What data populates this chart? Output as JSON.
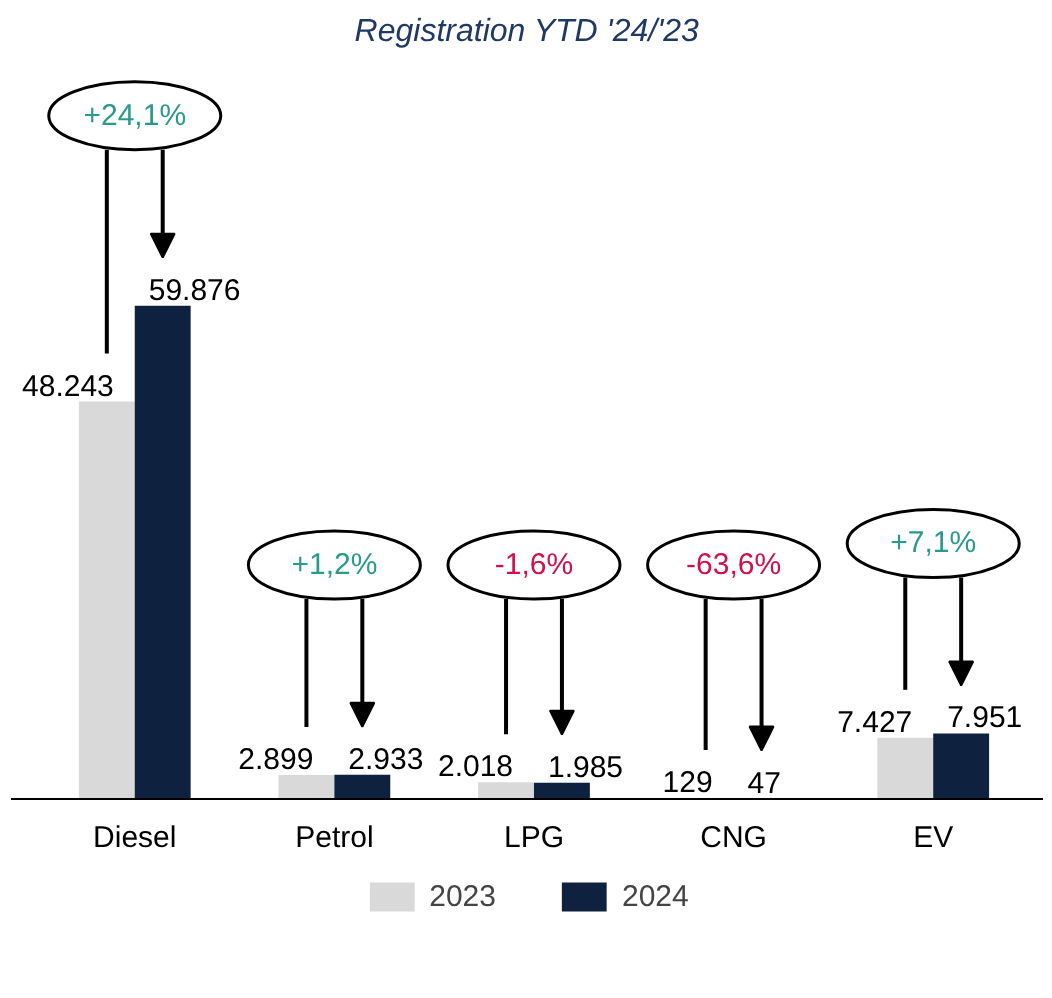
{
  "chart_data": {
    "type": "bar",
    "title": "Registration YTD '24/'23",
    "categories": [
      "Diesel",
      "Petrol",
      "LPG",
      "CNG",
      "EV"
    ],
    "series": [
      {
        "name": "2023",
        "color": "#d9d9d9",
        "values": [
          48243,
          2899,
          2018,
          129,
          7427
        ],
        "value_labels": [
          "48.243",
          "2.899",
          "2.018",
          "129",
          "7.427"
        ]
      },
      {
        "name": "2024",
        "color": "#0e2240",
        "values": [
          59876,
          2933,
          1985,
          47,
          7951
        ],
        "value_labels": [
          "59.876",
          "2.933",
          "1.985",
          "47",
          "7.951"
        ]
      }
    ],
    "annotations": [
      "+24,1%",
      "+1,2%",
      "-1,6%",
      "-63,6%",
      "+7,1%"
    ],
    "legend": "bottom"
  }
}
